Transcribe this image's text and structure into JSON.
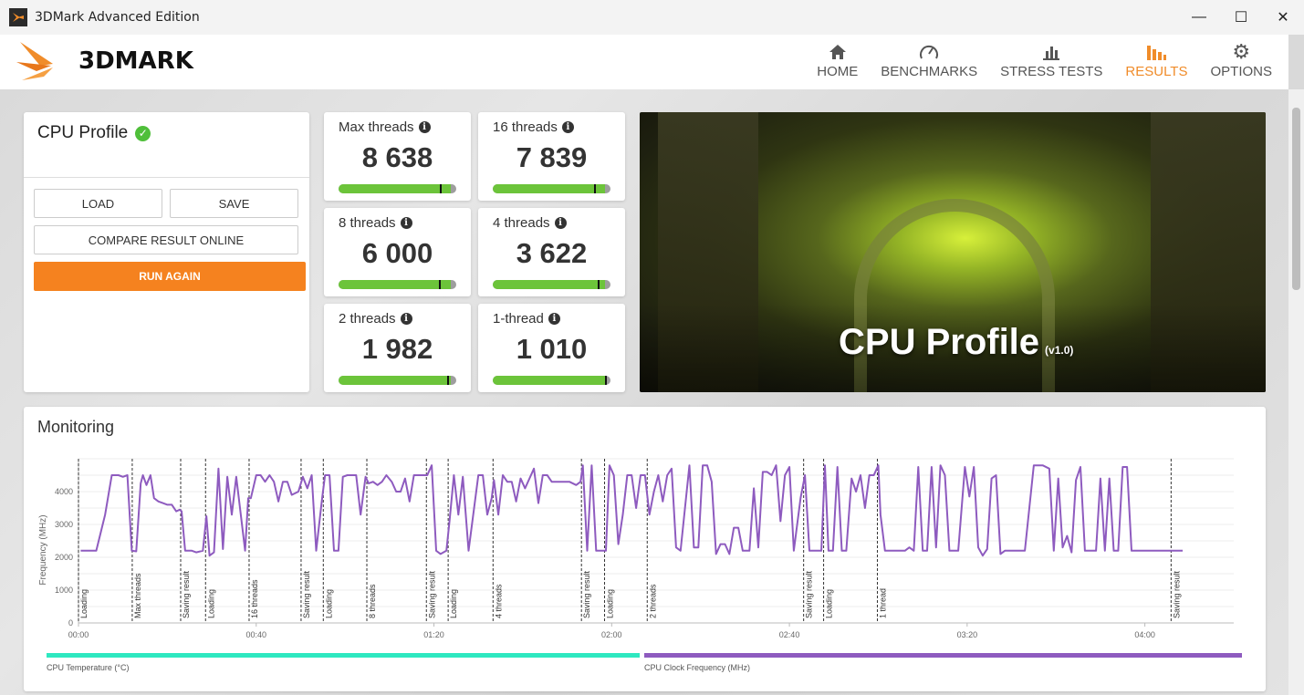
{
  "window": {
    "title": "3DMark Advanced Edition",
    "controls": [
      "minimize",
      "maximize",
      "close"
    ]
  },
  "logo": {
    "text": "3DMARK"
  },
  "nav": [
    {
      "label": "HOME",
      "icon": "home-icon",
      "active": false
    },
    {
      "label": "BENCHMARKS",
      "icon": "gauge-icon",
      "active": false
    },
    {
      "label": "STRESS TESTS",
      "icon": "bars-icon",
      "active": false
    },
    {
      "label": "RESULTS",
      "icon": "results-icon",
      "active": true
    },
    {
      "label": "OPTIONS",
      "icon": "gear-icon",
      "active": false
    }
  ],
  "result": {
    "title": "CPU Profile",
    "load": "LOAD",
    "save": "SAVE",
    "compare": "COMPARE RESULT ONLINE",
    "run_again": "RUN AGAIN"
  },
  "scores": [
    {
      "label": "Max threads",
      "value": "8 638",
      "bar_fill": 0.95,
      "marker": 0.86
    },
    {
      "label": "16 threads",
      "value": "7 839",
      "bar_fill": 0.95,
      "marker": 0.86
    },
    {
      "label": "8 threads",
      "value": "6 000",
      "bar_fill": 0.95,
      "marker": 0.85
    },
    {
      "label": "4 threads",
      "value": "3 622",
      "bar_fill": 0.95,
      "marker": 0.89
    },
    {
      "label": "2 threads",
      "value": "1 982",
      "bar_fill": 0.95,
      "marker": 0.92
    },
    {
      "label": "1-thread",
      "value": "1 010",
      "bar_fill": 0.95,
      "marker": 0.95
    }
  ],
  "hero": {
    "title": "CPU Profile",
    "version": "(v1.0)"
  },
  "monitoring": {
    "title": "Monitoring",
    "legend": [
      {
        "label": "CPU Temperature (°C)",
        "color": "#2ee8c0"
      },
      {
        "label": "CPU Clock Frequency (MHz)",
        "color": "#8e5bbf"
      }
    ]
  },
  "chart_data": {
    "type": "line",
    "ylabel": "Frequency (MHz)",
    "xlim": [
      0,
      260
    ],
    "ylim": [
      0,
      5000
    ],
    "x_ticks": [
      {
        "t": 0,
        "label": "00:00"
      },
      {
        "t": 40,
        "label": "00:40"
      },
      {
        "t": 80,
        "label": "01:20"
      },
      {
        "t": 120,
        "label": "02:00"
      },
      {
        "t": 160,
        "label": "02:40"
      },
      {
        "t": 200,
        "label": "03:20"
      },
      {
        "t": 240,
        "label": "04:00"
      }
    ],
    "y_ticks": [
      0,
      1000,
      2000,
      3000,
      4000
    ],
    "grid": true,
    "line_color": "#8e5bbf",
    "markers": [
      {
        "t": 0,
        "label": "Loading"
      },
      {
        "t": 12.1,
        "label": "Max threads"
      },
      {
        "t": 23.0,
        "label": "Saving result"
      },
      {
        "t": 28.6,
        "label": "Loading"
      },
      {
        "t": 38.4,
        "label": "16 threads"
      },
      {
        "t": 50.1,
        "label": "Saving result"
      },
      {
        "t": 55.1,
        "label": "Loading"
      },
      {
        "t": 64.9,
        "label": "8 threads"
      },
      {
        "t": 78.3,
        "label": "Saving result"
      },
      {
        "t": 83.2,
        "label": "Loading"
      },
      {
        "t": 93.3,
        "label": "4 threads"
      },
      {
        "t": 113.2,
        "label": "Saving result"
      },
      {
        "t": 118.4,
        "label": "Loading"
      },
      {
        "t": 128.0,
        "label": "2 threads"
      },
      {
        "t": 163.2,
        "label": "Saving result"
      },
      {
        "t": 167.7,
        "label": "Loading"
      },
      {
        "t": 179.8,
        "label": "1 thread"
      },
      {
        "t": 245.9,
        "label": "Saving result"
      }
    ],
    "series": [
      {
        "name": "CPU Clock Frequency (MHz)",
        "points": [
          [
            0.5,
            2200
          ],
          [
            4,
            2200
          ],
          [
            6,
            3300
          ],
          [
            7.5,
            4500
          ],
          [
            9,
            4500
          ],
          [
            10,
            4450
          ],
          [
            11,
            4500
          ],
          [
            12,
            2200
          ],
          [
            13,
            2180
          ],
          [
            14,
            4250
          ],
          [
            14.5,
            4500
          ],
          [
            15.3,
            4200
          ],
          [
            16.2,
            4500
          ],
          [
            17,
            3800
          ],
          [
            18,
            3700
          ],
          [
            19,
            3650
          ],
          [
            20,
            3600
          ],
          [
            21,
            3600
          ],
          [
            22,
            3400
          ],
          [
            22.8,
            3450
          ],
          [
            23.2,
            3400
          ],
          [
            24,
            2200
          ],
          [
            25.5,
            2200
          ],
          [
            26.5,
            2150
          ],
          [
            28,
            2200
          ],
          [
            28.8,
            3250
          ],
          [
            29.5,
            2050
          ],
          [
            30.5,
            2150
          ],
          [
            31.5,
            4700
          ],
          [
            32.5,
            2250
          ],
          [
            33.5,
            4450
          ],
          [
            34.5,
            3300
          ],
          [
            35.5,
            4450
          ],
          [
            37.5,
            2200
          ],
          [
            38.2,
            3800
          ],
          [
            38.8,
            3800
          ],
          [
            40,
            4500
          ],
          [
            41,
            4500
          ],
          [
            42,
            4300
          ],
          [
            43,
            4500
          ],
          [
            44,
            4300
          ],
          [
            45,
            3700
          ],
          [
            46,
            4300
          ],
          [
            47,
            4300
          ],
          [
            48,
            3900
          ],
          [
            49.5,
            4000
          ],
          [
            50.5,
            4450
          ],
          [
            51.5,
            4100
          ],
          [
            52.5,
            4500
          ],
          [
            53.5,
            2200
          ],
          [
            54.8,
            3750
          ],
          [
            55.5,
            4500
          ],
          [
            56.5,
            4500
          ],
          [
            57.5,
            2200
          ],
          [
            58.5,
            2200
          ],
          [
            59.5,
            4450
          ],
          [
            60.5,
            4500
          ],
          [
            62.5,
            4500
          ],
          [
            63.5,
            3300
          ],
          [
            64.6,
            4450
          ],
          [
            65.3,
            4250
          ],
          [
            66.3,
            4300
          ],
          [
            67.3,
            4200
          ],
          [
            68.3,
            4300
          ],
          [
            69.3,
            4500
          ],
          [
            70.5,
            4300
          ],
          [
            71.5,
            4000
          ],
          [
            72.5,
            4000
          ],
          [
            73.5,
            4400
          ],
          [
            74.5,
            3700
          ],
          [
            75.5,
            4500
          ],
          [
            77,
            4500
          ],
          [
            78,
            4500
          ],
          [
            78.5,
            4500
          ],
          [
            79.5,
            4800
          ],
          [
            80.5,
            2200
          ],
          [
            81.5,
            2100
          ],
          [
            82.8,
            2200
          ],
          [
            83.5,
            3100
          ],
          [
            84.5,
            4500
          ],
          [
            85.5,
            3300
          ],
          [
            86.5,
            4450
          ],
          [
            87.8,
            2200
          ],
          [
            90,
            4500
          ],
          [
            91,
            4500
          ],
          [
            92,
            3300
          ],
          [
            93,
            3800
          ],
          [
            93.5,
            4350
          ],
          [
            94.5,
            3300
          ],
          [
            95.5,
            4500
          ],
          [
            96.5,
            4300
          ],
          [
            97.5,
            4300
          ],
          [
            98.5,
            3700
          ],
          [
            99.5,
            4400
          ],
          [
            100.5,
            4100
          ],
          [
            102.5,
            4700
          ],
          [
            103.5,
            3650
          ],
          [
            104.5,
            4500
          ],
          [
            105.5,
            4500
          ],
          [
            106.5,
            4300
          ],
          [
            107.5,
            4300
          ],
          [
            109,
            4300
          ],
          [
            110.5,
            4300
          ],
          [
            112,
            4200
          ],
          [
            113,
            4300
          ],
          [
            113.5,
            4800
          ],
          [
            114.5,
            2200
          ],
          [
            115.5,
            4800
          ],
          [
            116.5,
            2200
          ],
          [
            117.5,
            2200
          ],
          [
            118.7,
            2200
          ],
          [
            119.5,
            4800
          ],
          [
            120.5,
            4500
          ],
          [
            121.5,
            2400
          ],
          [
            122.5,
            3300
          ],
          [
            123.5,
            4500
          ],
          [
            124.5,
            4500
          ],
          [
            125.5,
            3500
          ],
          [
            126.5,
            4500
          ],
          [
            127.5,
            4500
          ],
          [
            128.5,
            3300
          ],
          [
            129.5,
            4000
          ],
          [
            130.5,
            4500
          ],
          [
            131.5,
            3700
          ],
          [
            132.5,
            4500
          ],
          [
            133.5,
            4700
          ],
          [
            134.5,
            2300
          ],
          [
            135.5,
            2200
          ],
          [
            137.5,
            4800
          ],
          [
            138.5,
            2300
          ],
          [
            139.5,
            2300
          ],
          [
            140.5,
            4800
          ],
          [
            141.5,
            4800
          ],
          [
            142.5,
            4300
          ],
          [
            143.5,
            2100
          ],
          [
            144.5,
            2400
          ],
          [
            145.5,
            2400
          ],
          [
            146.5,
            2100
          ],
          [
            147.5,
            2900
          ],
          [
            148.5,
            2900
          ],
          [
            149.5,
            2200
          ],
          [
            151,
            2200
          ],
          [
            152,
            4100
          ],
          [
            153,
            2300
          ],
          [
            154,
            4600
          ],
          [
            155,
            4600
          ],
          [
            156,
            4500
          ],
          [
            157,
            4800
          ],
          [
            158,
            3100
          ],
          [
            159,
            4500
          ],
          [
            160,
            4750
          ],
          [
            161,
            2200
          ],
          [
            162.5,
            3800
          ],
          [
            163.5,
            4500
          ],
          [
            164.5,
            2200
          ],
          [
            165.5,
            2200
          ],
          [
            167.2,
            2200
          ],
          [
            168,
            4800
          ],
          [
            168.8,
            2200
          ],
          [
            169.8,
            2200
          ],
          [
            170.8,
            4750
          ],
          [
            171.8,
            2200
          ],
          [
            172.8,
            2200
          ],
          [
            174,
            4400
          ],
          [
            175,
            4000
          ],
          [
            176,
            4500
          ],
          [
            177,
            3500
          ],
          [
            178,
            4500
          ],
          [
            179,
            4500
          ],
          [
            180,
            4800
          ],
          [
            180.5,
            3300
          ],
          [
            181.5,
            2200
          ],
          [
            186,
            2200
          ],
          [
            187,
            2300
          ],
          [
            188,
            2200
          ],
          [
            189,
            4750
          ],
          [
            190,
            2200
          ],
          [
            191,
            2200
          ],
          [
            192,
            4750
          ],
          [
            193,
            2300
          ],
          [
            194,
            4800
          ],
          [
            195,
            4500
          ],
          [
            196,
            2200
          ],
          [
            198,
            2200
          ],
          [
            199.5,
            4750
          ],
          [
            200.5,
            3850
          ],
          [
            201.5,
            4750
          ],
          [
            202.5,
            2300
          ],
          [
            203.5,
            2050
          ],
          [
            204.5,
            2250
          ],
          [
            205.5,
            4400
          ],
          [
            206.5,
            4500
          ],
          [
            207.5,
            2100
          ],
          [
            208.5,
            2200
          ],
          [
            213,
            2200
          ],
          [
            215,
            4800
          ],
          [
            217,
            4800
          ],
          [
            218.5,
            4700
          ],
          [
            219.5,
            2200
          ],
          [
            220.5,
            4400
          ],
          [
            221.5,
            2300
          ],
          [
            222.5,
            2650
          ],
          [
            223.5,
            2150
          ],
          [
            224.5,
            4350
          ],
          [
            225.5,
            4750
          ],
          [
            226.5,
            2200
          ],
          [
            229,
            2200
          ],
          [
            230,
            4400
          ],
          [
            231,
            2200
          ],
          [
            232,
            4400
          ],
          [
            233,
            2200
          ],
          [
            234,
            2200
          ],
          [
            235,
            4750
          ],
          [
            236,
            4750
          ],
          [
            237,
            2200
          ],
          [
            245,
            2200
          ],
          [
            246.5,
            2200
          ],
          [
            248.5,
            2200
          ]
        ]
      }
    ]
  }
}
